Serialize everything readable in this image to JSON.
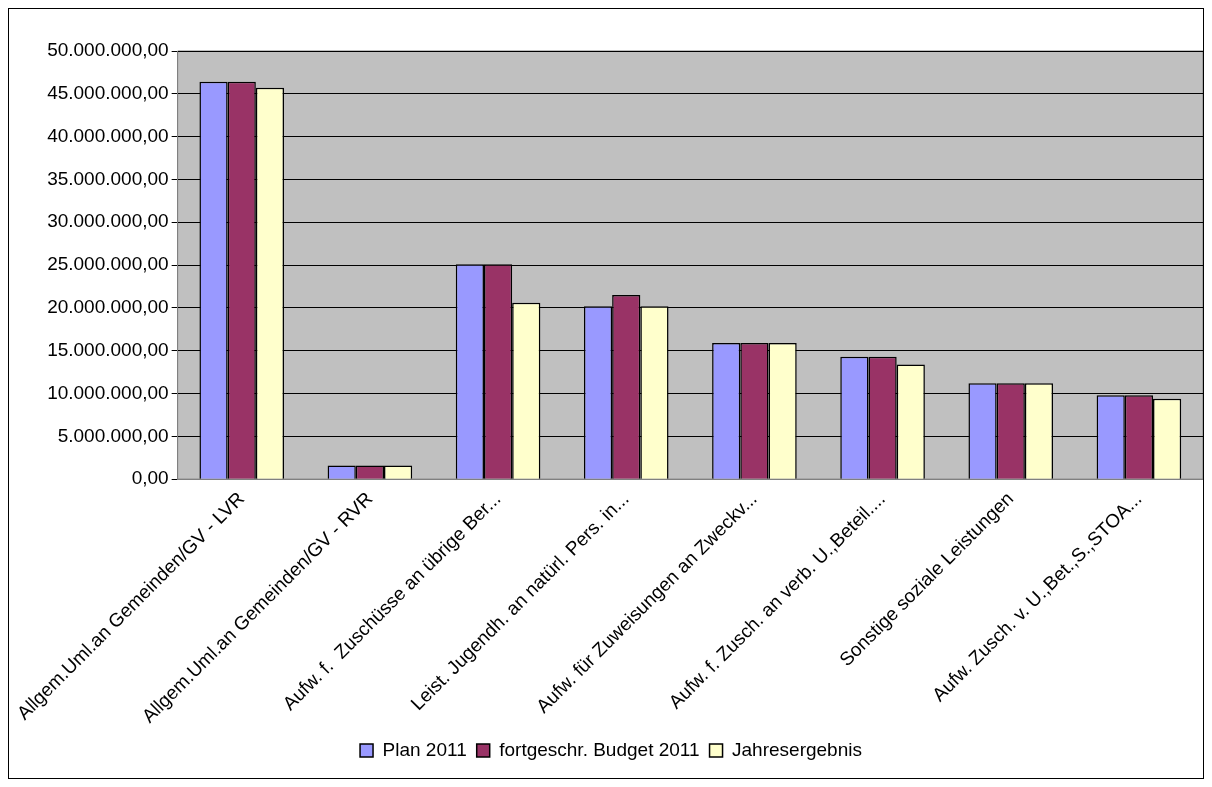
{
  "chart_data": {
    "type": "bar",
    "categories": [
      "Allgem.Uml.an Gemeinden/GV - LVR",
      "Allgem.Uml.an Gemeinden/GV - RVR",
      "Aufw. f.  Zuschüsse an übrige Ber...",
      "Leist. Jugendh. an natürl. Pers. in...",
      "Aufw. für Zuweisungen an Zweckv...",
      "Aufw. f. Zusch. an verb. U.,Beteil....",
      "Sonstige soziale Leistungen",
      "Aufw. Zusch. v. U.,Bet.,S.,STOA..."
    ],
    "series": [
      {
        "name": "Plan 2011",
        "color": "#9999ff",
        "values": [
          46400000,
          1600000,
          25100000,
          20200000,
          15900000,
          14300000,
          11200000,
          9800000
        ]
      },
      {
        "name": "fortgeschr. Budget 2011",
        "color": "#993366",
        "values": [
          46400000,
          1600000,
          25100000,
          21500000,
          15900000,
          14300000,
          11200000,
          9800000
        ]
      },
      {
        "name": "Jahresergebnis",
        "color": "#ffffcc",
        "values": [
          45700000,
          1600000,
          20600000,
          20200000,
          15900000,
          13400000,
          11200000,
          9400000
        ]
      }
    ],
    "ylim": [
      0,
      50000000
    ],
    "yticks": [
      {
        "value": 0,
        "label": "0,00"
      },
      {
        "value": 5000000,
        "label": "5.000.000,00"
      },
      {
        "value": 10000000,
        "label": "10.000.000,00"
      },
      {
        "value": 15000000,
        "label": "15.000.000,00"
      },
      {
        "value": 20000000,
        "label": "20.000.000,00"
      },
      {
        "value": 25000000,
        "label": "25.000.000,00"
      },
      {
        "value": 30000000,
        "label": "30.000.000,00"
      },
      {
        "value": 35000000,
        "label": "35.000.000,00"
      },
      {
        "value": 40000000,
        "label": "40.000.000,00"
      },
      {
        "value": 45000000,
        "label": "45.000.000,00"
      },
      {
        "value": 50000000,
        "label": "50.000.000,00"
      }
    ],
    "grid": "y",
    "legend": "bottom"
  }
}
